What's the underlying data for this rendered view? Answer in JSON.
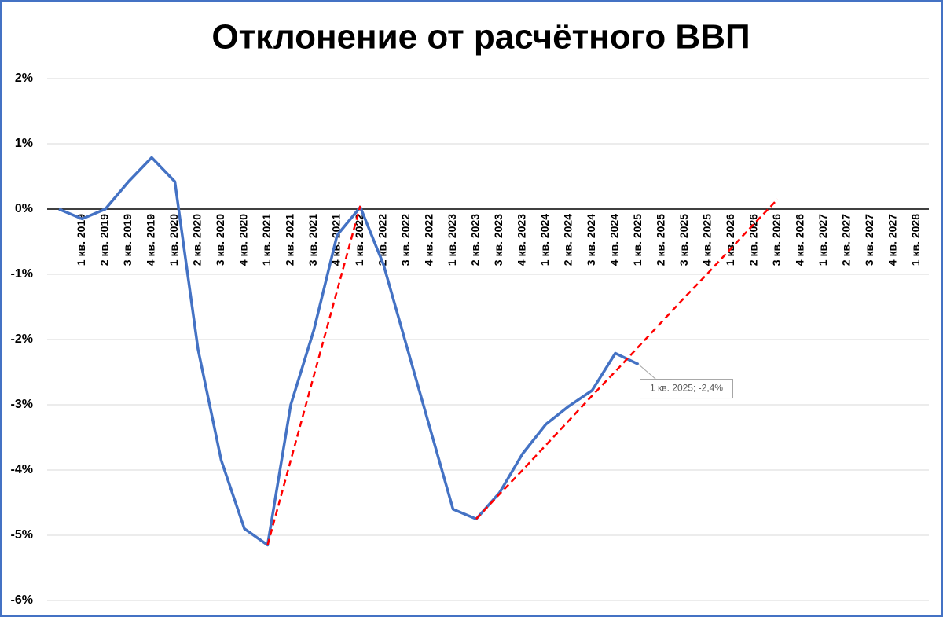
{
  "chart_data": {
    "type": "line",
    "title": "Отклонение от расчётного ВВП",
    "categories": [
      null,
      "1 кв. 2019",
      "2 кв. 2019",
      "3 кв. 2019",
      "4 кв. 2019",
      "1 кв. 2020",
      "2 кв. 2020",
      "3 кв. 2020",
      "4 кв. 2020",
      "1 кв. 2021",
      "2 кв. 2021",
      "3 кв. 2021",
      "4 кв. 2021",
      "1 кв. 2022",
      "2 кв. 2022",
      "3 кв. 2022",
      "4 кв. 2022",
      "1 кв. 2023",
      "2 кв. 2023",
      "3 кв. 2023",
      "4 кв. 2023",
      "1 кв. 2024",
      "2 кв. 2024",
      "3 кв. 2024",
      "4 кв. 2024",
      "1 кв. 2025",
      "2 кв. 2025",
      "3 кв. 2025",
      "4 кв. 2025",
      "1 кв. 2026",
      "2 кв. 2026",
      "3 кв. 2026",
      "4 кв. 2026",
      "1 кв. 2027",
      "2 кв. 2027",
      "3 кв. 2027",
      "4 кв. 2027",
      "1 кв. 2028"
    ],
    "series": [
      {
        "color": "#4472c4",
        "dash": false,
        "values": [
          0,
          -0.15,
          0,
          0.42,
          0.79,
          0.42,
          -2.15,
          -3.85,
          -4.9,
          -5.15,
          -3.0,
          -1.85,
          -0.4,
          0.03,
          -0.85,
          -2.1,
          -3.35,
          -4.6,
          -4.75,
          -4.35,
          -3.75,
          -3.3,
          -3.02,
          -2.78,
          -2.21,
          -2.38,
          null,
          null,
          null,
          null,
          null,
          null,
          null,
          null,
          null,
          null,
          null,
          null
        ],
        "value_labels": [
          null,
          null,
          null,
          null,
          null,
          null,
          null,
          null,
          null,
          null,
          null,
          null,
          null,
          null,
          null,
          null,
          null,
          null,
          null,
          null,
          null,
          null,
          null,
          null,
          null,
          "1 кв. 2025; -2,4%",
          null,
          null,
          null,
          null,
          null,
          null,
          null,
          null,
          null,
          null,
          null,
          null
        ]
      },
      {
        "color": "#ff0000",
        "dash": true,
        "values": [
          null,
          null,
          null,
          null,
          null,
          null,
          null,
          null,
          null,
          -5.15,
          -3.85,
          -2.55,
          -1.25,
          0.05,
          null,
          null,
          null,
          null,
          null,
          null,
          null,
          null,
          null,
          null,
          null,
          null,
          null,
          null,
          null,
          null,
          null,
          null,
          null,
          null,
          null,
          null,
          null,
          null
        ]
      },
      {
        "color": "#ff0000",
        "dash": true,
        "values": [
          null,
          null,
          null,
          null,
          null,
          null,
          null,
          null,
          null,
          null,
          null,
          null,
          null,
          null,
          null,
          null,
          null,
          null,
          -4.75,
          -4.37,
          -4.0,
          -3.62,
          -3.24,
          -2.86,
          -2.49,
          -2.11,
          -1.73,
          -1.35,
          -0.98,
          -0.6,
          -0.22,
          0.15,
          null,
          null,
          null,
          null,
          null,
          null
        ]
      }
    ],
    "ylim": [
      -6,
      2
    ],
    "yticks": [
      {
        "value": 2,
        "label": "2%"
      },
      {
        "value": 1,
        "label": "1%"
      },
      {
        "value": 0,
        "label": "0%"
      },
      {
        "value": -1,
        "label": "-1%"
      },
      {
        "value": -2,
        "label": "-2%"
      },
      {
        "value": -3,
        "label": "-3%"
      },
      {
        "value": -4,
        "label": "-4%"
      },
      {
        "value": -5,
        "label": "-5%"
      },
      {
        "value": -6,
        "label": "-6%"
      }
    ],
    "grid": true
  }
}
